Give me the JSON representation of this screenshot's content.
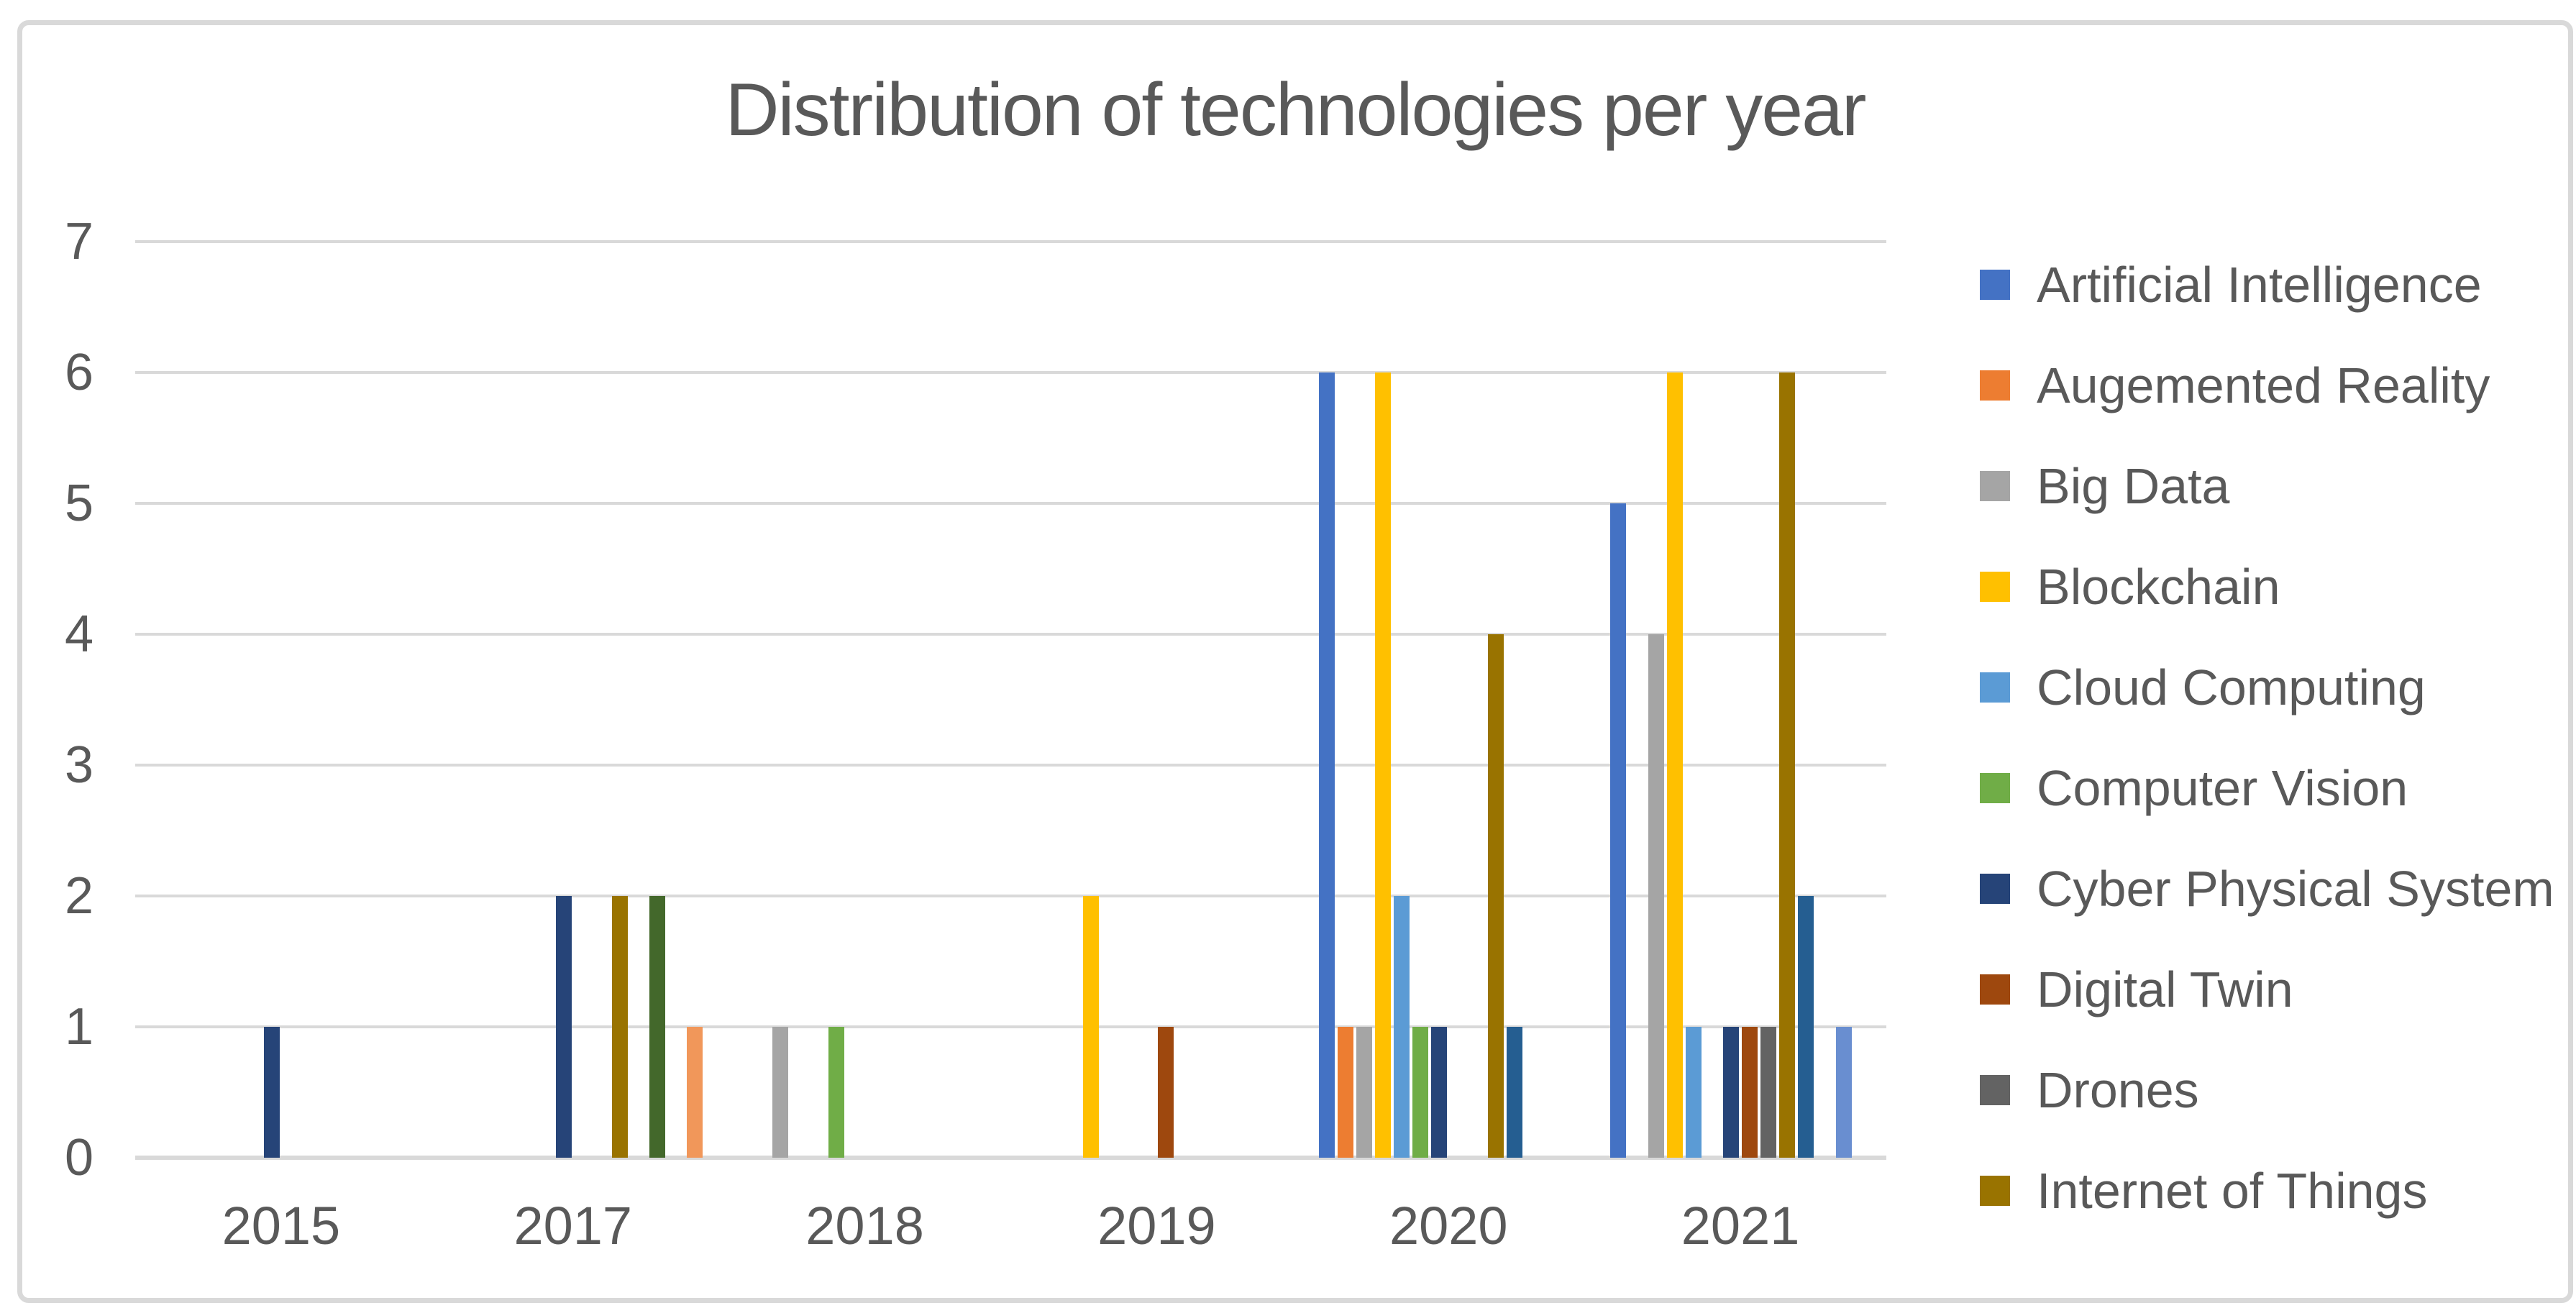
{
  "chart_data": {
    "type": "bar",
    "title": "Distribution of technologies per year",
    "categories": [
      "2015",
      "2017",
      "2018",
      "2019",
      "2020",
      "2021"
    ],
    "series": [
      {
        "name": "Artificial Intelligence",
        "color": "#4472C4",
        "values": [
          0,
          0,
          0,
          0,
          6,
          5
        ]
      },
      {
        "name": "Augemented Reality",
        "color": "#ED7D31",
        "values": [
          0,
          0,
          0,
          0,
          1,
          0
        ]
      },
      {
        "name": "Big Data",
        "color": "#A5A5A5",
        "values": [
          0,
          0,
          1,
          0,
          1,
          4
        ]
      },
      {
        "name": "Blockchain",
        "color": "#FFC000",
        "values": [
          0,
          0,
          0,
          2,
          6,
          6
        ]
      },
      {
        "name": "Cloud Computing",
        "color": "#5B9BD5",
        "values": [
          0,
          0,
          0,
          0,
          2,
          1
        ]
      },
      {
        "name": "Computer Vision",
        "color": "#70AD47",
        "values": [
          0,
          0,
          1,
          0,
          1,
          0
        ]
      },
      {
        "name": "Cyber Physical System",
        "color": "#264478",
        "values": [
          1,
          2,
          0,
          0,
          1,
          1
        ]
      },
      {
        "name": "Digital Twin",
        "color": "#9E480E",
        "values": [
          0,
          0,
          0,
          1,
          0,
          1
        ]
      },
      {
        "name": "Drones",
        "color": "#636363",
        "values": [
          0,
          0,
          0,
          0,
          0,
          1
        ]
      },
      {
        "name": "Internet of Things",
        "color": "#997300",
        "values": [
          0,
          2,
          0,
          0,
          4,
          6
        ]
      },
      {
        "name": null,
        "color": "#255E91",
        "values": [
          0,
          0,
          0,
          0,
          1,
          2
        ]
      },
      {
        "name": null,
        "color": "#43682B",
        "values": [
          0,
          2,
          0,
          0,
          0,
          0
        ]
      },
      {
        "name": null,
        "color": "#698ED0",
        "values": [
          0,
          0,
          0,
          0,
          0,
          1
        ]
      },
      {
        "name": null,
        "color": "#F1975A",
        "values": [
          0,
          1,
          0,
          0,
          0,
          0
        ]
      }
    ],
    "y_axis": {
      "min": 0,
      "max": 7,
      "tick_interval": 1,
      "tick_labels": [
        "0",
        "1",
        "2",
        "3",
        "4",
        "5",
        "6",
        "7"
      ]
    },
    "x_axis": {
      "tick_labels": [
        "2015",
        "2017",
        "2018",
        "2019",
        "2020",
        "2021"
      ]
    },
    "legend": {
      "position": "right",
      "visible_count": 10
    },
    "grid": true,
    "styles": {
      "text_color": "#595959",
      "gridline_color": "#D9D9D9",
      "background": "#FFFFFF",
      "frame_border_color": "#D9D9D9"
    }
  }
}
